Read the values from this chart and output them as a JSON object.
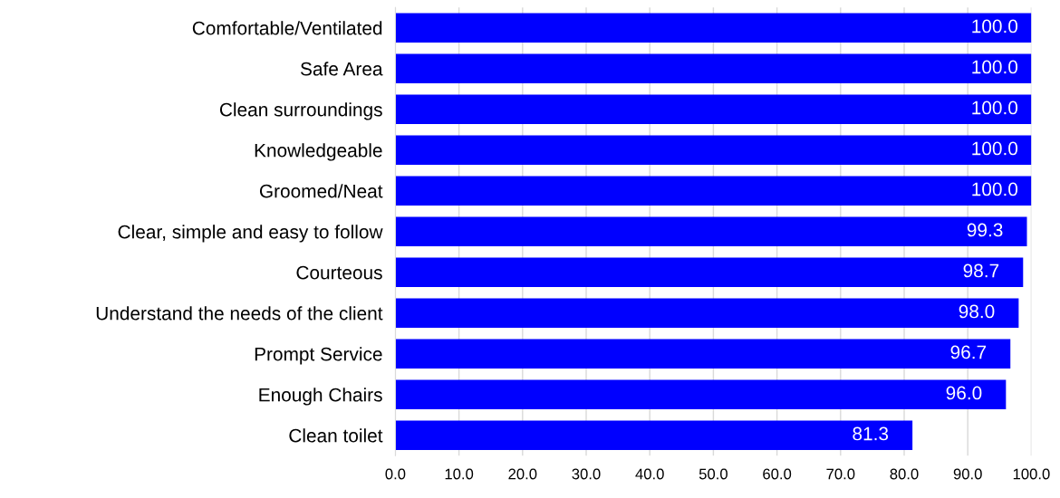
{
  "chart_data": {
    "type": "bar",
    "orientation": "horizontal",
    "categories": [
      "Comfortable/Ventilated",
      "Safe Area",
      "Clean surroundings",
      "Knowledgeable",
      "Groomed/Neat",
      "Clear, simple and easy to follow",
      "Courteous",
      "Understand the needs of the client",
      "Prompt Service",
      "Enough Chairs",
      "Clean toilet"
    ],
    "values": [
      100.0,
      100.0,
      100.0,
      100.0,
      100.0,
      99.3,
      98.7,
      98.0,
      96.7,
      96.0,
      81.3
    ],
    "value_labels": [
      "100.0",
      "100.0",
      "100.0",
      "100.0",
      "100.0",
      "99.3",
      "98.7",
      "98.0",
      "96.7",
      "96.0",
      "81.3"
    ],
    "color": "#0000ff",
    "xlim": [
      0,
      100
    ],
    "xticks": [
      {
        "value": 0,
        "label": "0.0"
      },
      {
        "value": 10,
        "label": "10.0"
      },
      {
        "value": 20,
        "label": "20.0"
      },
      {
        "value": 30,
        "label": "30.0"
      },
      {
        "value": 40,
        "label": "40.0"
      },
      {
        "value": 50,
        "label": "50.0"
      },
      {
        "value": 60,
        "label": "60.0"
      },
      {
        "value": 70,
        "label": "70.0"
      },
      {
        "value": 80,
        "label": "80.0"
      },
      {
        "value": 90,
        "label": "90.0"
      },
      {
        "value": 100,
        "label": "100.0"
      }
    ],
    "grid": "x"
  }
}
